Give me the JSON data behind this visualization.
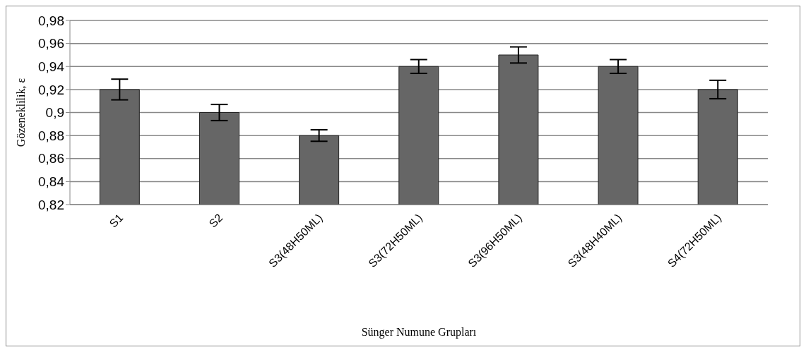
{
  "chart_data": {
    "type": "bar",
    "xlabel": "Sünger Numune Grupları",
    "ylabel": "Gözeneklilik, ε",
    "categories": [
      "S1",
      "S2",
      "S3(48H50ML)",
      "S3(72H50ML)",
      "S3(96H50ML)",
      "S3(48H40ML)",
      "S4(72H50ML)"
    ],
    "values": [
      0.92,
      0.9,
      0.88,
      0.94,
      0.95,
      0.94,
      0.92
    ],
    "errors": [
      0.009,
      0.007,
      0.005,
      0.006,
      0.007,
      0.006,
      0.008
    ],
    "color": "#666666",
    "ylim": [
      0.82,
      0.98
    ],
    "yticks": [
      {
        "value": 0.82,
        "label": "0,82"
      },
      {
        "value": 0.84,
        "label": "0,84"
      },
      {
        "value": 0.86,
        "label": "0,86"
      },
      {
        "value": 0.88,
        "label": "0,88"
      },
      {
        "value": 0.9,
        "label": "0,9"
      },
      {
        "value": 0.92,
        "label": "0,92"
      },
      {
        "value": 0.94,
        "label": "0,94"
      },
      {
        "value": 0.96,
        "label": "0,96"
      },
      {
        "value": 0.98,
        "label": "0,98"
      }
    ],
    "grid": "y",
    "legend": false
  }
}
